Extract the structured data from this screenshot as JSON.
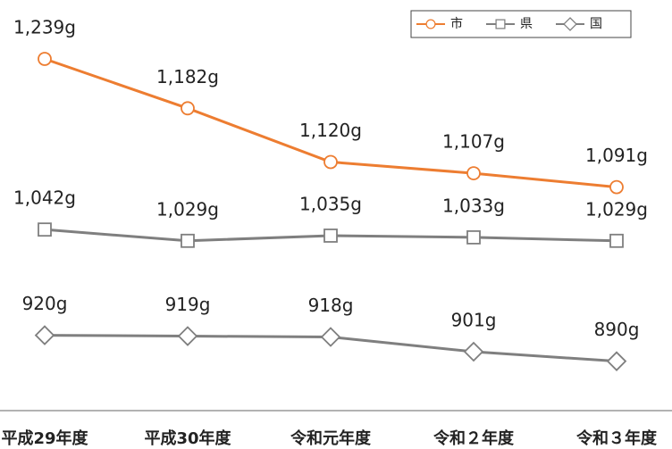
{
  "chart_data": {
    "type": "line",
    "categories": [
      "平成29年度",
      "平成30年度",
      "令和元年度",
      "令和２年度",
      "令和３年度"
    ],
    "series": [
      {
        "name": "市",
        "color": "#ed7d31",
        "marker": "circle",
        "values": [
          1239,
          1182,
          1120,
          1107,
          1091
        ],
        "value_labels": [
          "1,239g",
          "1,182g",
          "1,120g",
          "1,107g",
          "1,091g"
        ]
      },
      {
        "name": "県",
        "color": "#7f7f7f",
        "marker": "square",
        "values": [
          1042,
          1029,
          1035,
          1033,
          1029
        ],
        "value_labels": [
          "1,042g",
          "1,029g",
          "1,035g",
          "1,033g",
          "1,029g"
        ]
      },
      {
        "name": "国",
        "color": "#7f7f7f",
        "marker": "diamond",
        "values": [
          920,
          919,
          918,
          901,
          890
        ],
        "value_labels": [
          "920g",
          "919g",
          "918g",
          "901g",
          "890g"
        ]
      }
    ],
    "ylim": [
      833,
      1307
    ],
    "legend": "top-right"
  }
}
